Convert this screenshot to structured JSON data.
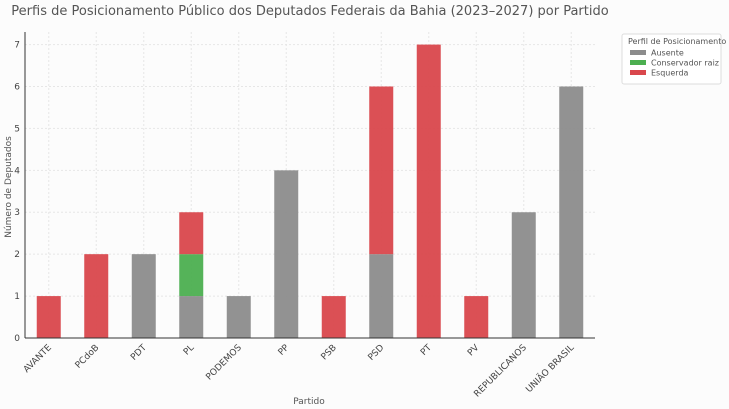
{
  "chart_data": {
    "type": "bar",
    "stacked": true,
    "title": "Perfis de Posicionamento Público dos Deputados Federais da Bahia (2023–2027) por Partido",
    "xlabel": "Partido",
    "ylabel": "Número de Deputados",
    "ylim": [
      0,
      7.3
    ],
    "yticks": [
      0,
      1,
      2,
      3,
      4,
      5,
      6,
      7
    ],
    "grid": true,
    "legend": {
      "title": "Perfil de Posicionamento",
      "placement": "top-right outside"
    },
    "categories": [
      "AVANTE",
      "PCdoB",
      "PDT",
      "PL",
      "PODEMOS",
      "PP",
      "PSB",
      "PSD",
      "PT",
      "PV",
      "REPUBLICANOS",
      "UNIÃO BRASIL"
    ],
    "series": [
      {
        "name": "Ausente",
        "color": "#8c8c8c",
        "values": [
          0,
          0,
          2,
          1,
          1,
          4,
          0,
          2,
          0,
          0,
          3,
          6
        ]
      },
      {
        "name": "Conservador raiz",
        "color": "#4caf50",
        "values": [
          0,
          0,
          0,
          1,
          0,
          0,
          0,
          0,
          0,
          0,
          0,
          0
        ]
      },
      {
        "name": "Esquerda",
        "color": "#d9474c",
        "values": [
          1,
          2,
          0,
          1,
          0,
          0,
          1,
          4,
          7,
          1,
          0,
          0
        ]
      }
    ]
  }
}
